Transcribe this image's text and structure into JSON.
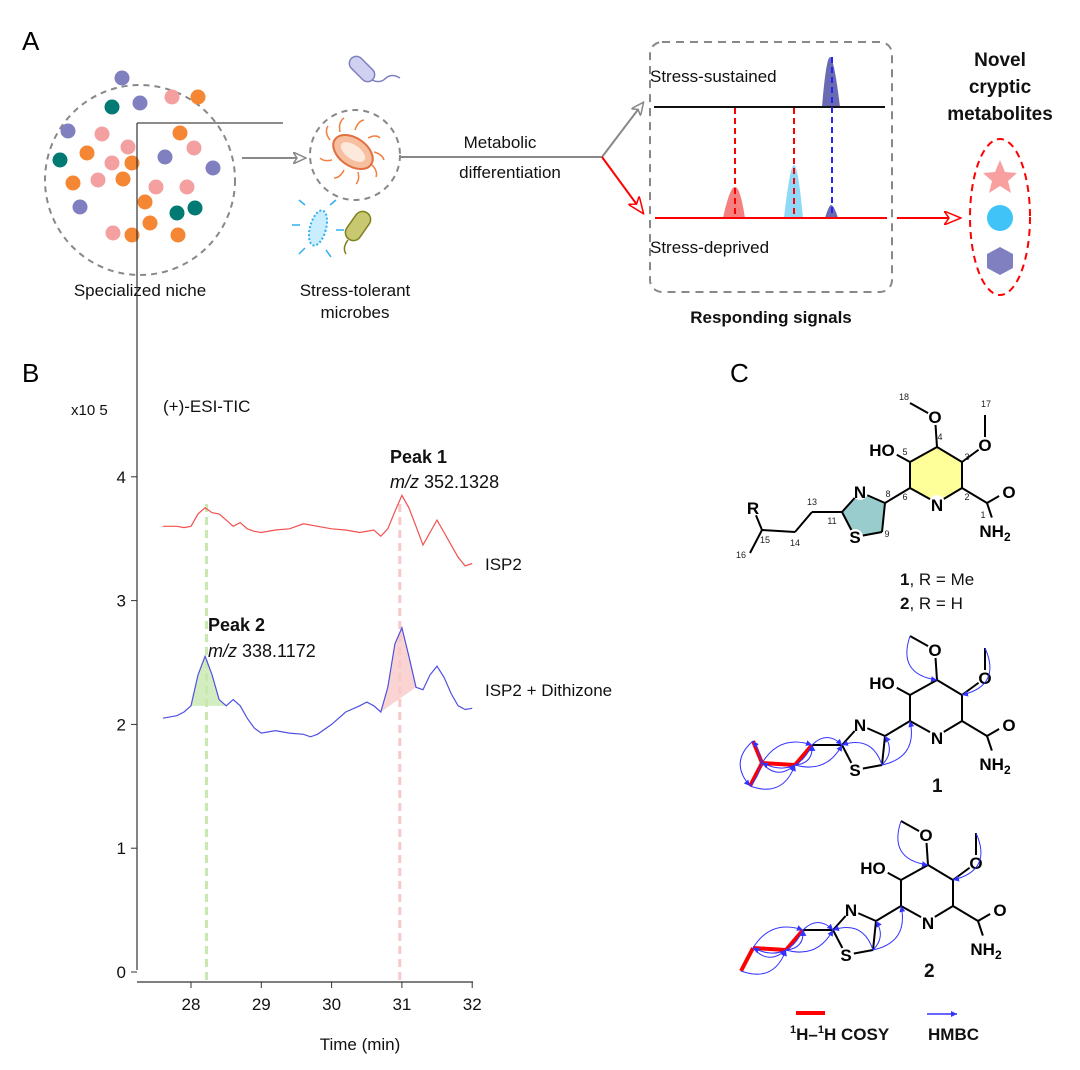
{
  "panel_a": {
    "label": "A",
    "niche_label": "Specialized niche",
    "microbes_label_1": "Stress-tolerant",
    "microbes_label_2": "microbes",
    "process_label_1": "Metabolic",
    "process_label_2": "differentiation",
    "sustained_label": "Stress-sustained",
    "deprived_label": "Stress-deprived",
    "signals_label": "Responding signals",
    "result_label_1": "Novel",
    "result_label_2": "cryptic",
    "result_label_3": "metabolites",
    "colors": {
      "pink": "#f4a0a0",
      "orange": "#f58634",
      "purple": "#8080c0",
      "teal": "#007a73",
      "cyan": "#40c4f8",
      "red": "#ff0000"
    }
  },
  "panel_b": {
    "label": "B",
    "chart_data": {
      "type": "line",
      "title": "(+)-ESI-TIC",
      "xlabel": "Time (min)",
      "ylabel": "",
      "y_multiplier": "x10 5",
      "xlim": [
        27.3,
        32
      ],
      "ylim": [
        0,
        4.4
      ],
      "xticks": [
        "28",
        "29",
        "30",
        "31",
        "32"
      ],
      "yticks": [
        "0",
        "1",
        "2",
        "3",
        "4"
      ],
      "grid": false,
      "series": [
        {
          "name": "ISP2",
          "color": "#f25050",
          "x": [
            27.6,
            27.8,
            27.9,
            28.0,
            28.1,
            28.2,
            28.3,
            28.4,
            28.5,
            28.6,
            28.7,
            28.8,
            28.9,
            29.0,
            29.2,
            29.4,
            29.6,
            29.8,
            30.0,
            30.2,
            30.4,
            30.6,
            30.7,
            30.8,
            30.9,
            31.0,
            31.1,
            31.2,
            31.3,
            31.4,
            31.5,
            31.6,
            31.7,
            31.8,
            31.9,
            32.0
          ],
          "y": [
            3.6,
            3.6,
            3.59,
            3.6,
            3.7,
            3.75,
            3.71,
            3.7,
            3.65,
            3.6,
            3.63,
            3.58,
            3.56,
            3.55,
            3.57,
            3.58,
            3.62,
            3.6,
            3.58,
            3.57,
            3.55,
            3.57,
            3.52,
            3.58,
            3.72,
            3.85,
            3.75,
            3.6,
            3.45,
            3.55,
            3.65,
            3.55,
            3.45,
            3.35,
            3.28,
            3.3
          ]
        },
        {
          "name": "ISP2 + Dithizone",
          "color": "#5050e0",
          "x": [
            27.6,
            27.8,
            27.9,
            28.0,
            28.1,
            28.2,
            28.3,
            28.4,
            28.5,
            28.6,
            28.7,
            28.8,
            28.9,
            29.0,
            29.2,
            29.4,
            29.6,
            29.7,
            29.8,
            30.0,
            30.2,
            30.4,
            30.5,
            30.6,
            30.7,
            30.8,
            30.9,
            31.0,
            31.1,
            31.2,
            31.3,
            31.4,
            31.5,
            31.6,
            31.7,
            31.8,
            31.9,
            32.0
          ],
          "y": [
            2.05,
            2.07,
            2.1,
            2.15,
            2.4,
            2.55,
            2.4,
            2.2,
            2.15,
            2.2,
            2.15,
            2.05,
            1.97,
            1.93,
            1.95,
            1.93,
            1.92,
            1.9,
            1.92,
            2.0,
            2.1,
            2.15,
            2.18,
            2.15,
            2.1,
            2.3,
            2.65,
            2.78,
            2.55,
            2.3,
            2.28,
            2.4,
            2.47,
            2.38,
            2.25,
            2.15,
            2.12,
            2.13
          ]
        }
      ],
      "annotations": [
        {
          "title": "Peak 1",
          "mz_prefix": "m/z",
          "mz": "352.1328",
          "x": 30.97,
          "color": "#f9c8c8"
        },
        {
          "title": "Peak 2",
          "mz_prefix": "m/z",
          "mz": "338.1172",
          "x": 28.22,
          "color": "#c8e8b0"
        }
      ]
    }
  },
  "panel_c": {
    "label": "C",
    "atoms": {
      "HO": "HO",
      "O": "O",
      "N": "N",
      "S": "S",
      "R": "R",
      "NH": "NH",
      "sub2": "2"
    },
    "numbering": [
      "1",
      "2",
      "3",
      "4",
      "5",
      "6",
      "8",
      "9",
      "11",
      "13",
      "14",
      "15",
      "16",
      "17",
      "18"
    ],
    "compound_1_label": "1",
    "compound_1_r": ", R = Me",
    "compound_2_label": "2",
    "compound_2_r": ", R = H",
    "legend_cosy": "H–",
    "legend_cosy_sup": "1",
    "legend_cosy_end": "H COSY",
    "legend_hmbc": "HMBC",
    "colors": {
      "pyridine": "#ffff99",
      "thiazole": "#99cccc",
      "cosy": "#ff0000",
      "hmbc": "#3333ff"
    }
  }
}
